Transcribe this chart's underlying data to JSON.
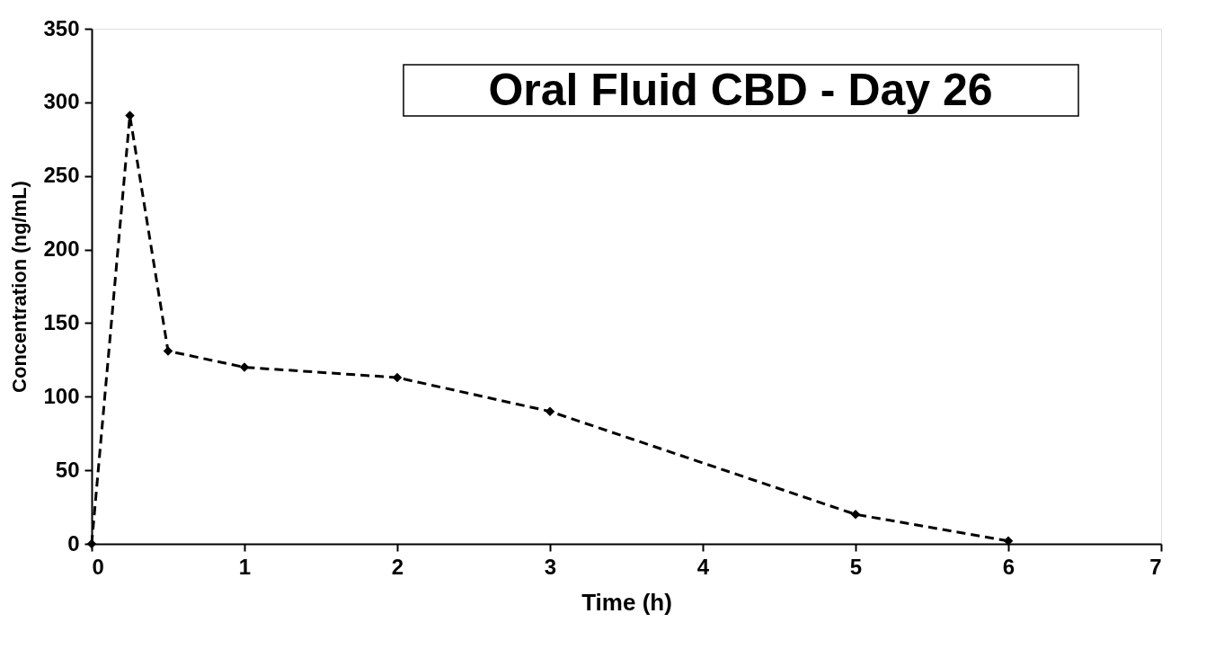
{
  "chart_data": {
    "type": "line",
    "title": "Oral Fluid CBD - Day 26",
    "xlabel": "Time (h)",
    "ylabel": "Concentration (ng/mL)",
    "x": [
      0,
      0.25,
      0.5,
      1,
      2,
      3,
      5,
      6
    ],
    "series": [
      {
        "color": "#000000",
        "values": [
          0,
          291,
          131,
          120,
          113,
          90,
          20,
          2
        ]
      }
    ],
    "xlim": [
      0,
      7
    ],
    "xticks": [
      0,
      1,
      2,
      3,
      4,
      5,
      6,
      7
    ],
    "ylim": [
      0,
      350
    ],
    "yticks": [
      0,
      50,
      100,
      150,
      200,
      250,
      300,
      350
    ],
    "grid": false,
    "marker": "diamond",
    "line_style": "dashed"
  }
}
